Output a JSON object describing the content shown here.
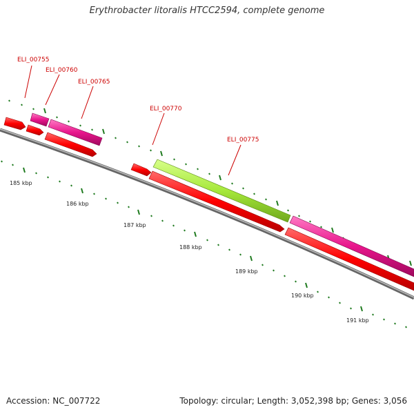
{
  "title": "Erythrobacter litoralis HTCC2594, complete genome",
  "footer": {
    "accession": "Accession: NC_007722",
    "summary": "Topology: circular; Length: 3,052,398 bp; Genes: 3,056"
  },
  "colors": {
    "forward_gene": "#ff0000",
    "reverse_gene": "#e8168c",
    "highlight_gene": "#a6e83a",
    "backbone": "#7a7a7a",
    "tick": "#1f7a1f",
    "label": "#cc0000"
  },
  "gene_labels": [
    "ELI_00755",
    "ELI_00760",
    "ELI_00765",
    "ELI_00770",
    "ELI_00775"
  ],
  "kbp_labels": [
    "185 kbp",
    "186 kbp",
    "187 kbp",
    "188 kbp",
    "189 kbp",
    "190 kbp",
    "191 kbp"
  ]
}
